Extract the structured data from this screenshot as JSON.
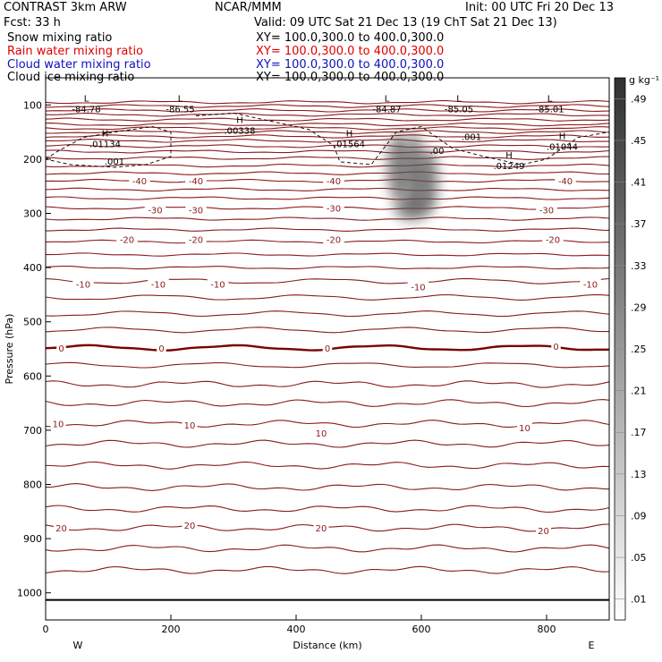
{
  "header": {
    "title": "CONTRAST  3km ARW",
    "center": "NCAR/MMM",
    "init": "Init: 00 UTC Fri 20 Dec 13",
    "fcst": "Fcst:   33 h",
    "valid": "Valid: 09 UTC Sat 21 Dec 13 (19 ChT Sat 21 Dec 13)",
    "fields": [
      {
        "label": "Snow mixing ratio",
        "xy": "XY= 100.0,300.0 to 400.0,300.0",
        "color": "#000000"
      },
      {
        "label": "Rain water mixing ratio",
        "xy": "XY= 100.0,300.0 to 400.0,300.0",
        "color": "#e00000"
      },
      {
        "label": "Cloud water mixing ratio",
        "xy": "XY= 100.0,300.0 to 400.0,300.0",
        "color": "#1010c0"
      },
      {
        "label": "Cloud ice mixing ratio",
        "xy": "XY= 100.0,300.0 to 400.0,300.0",
        "color": "#000000"
      }
    ]
  },
  "colors": {
    "contour": "#8b1a1a",
    "zero_contour": "#7a0000",
    "axes": "#000000"
  },
  "chart_data": {
    "type": "cross-section",
    "xlabel": "Distance (km)",
    "ylabel": "Pressure (hPa)",
    "xlim": [
      0,
      900
    ],
    "ylim": [
      1050,
      50
    ],
    "x_ticks": [
      0,
      200,
      400,
      600,
      800
    ],
    "y_ticks": [
      100,
      200,
      300,
      400,
      500,
      600,
      700,
      800,
      900,
      1000
    ],
    "direction_labels": {
      "left": "W",
      "right": "E"
    },
    "temperature_labels": [
      {
        "text": "-40",
        "x": 150,
        "p": 240
      },
      {
        "text": "-40",
        "x": 240,
        "p": 240
      },
      {
        "text": "-40",
        "x": 460,
        "p": 240
      },
      {
        "text": "-40",
        "x": 830,
        "p": 240
      },
      {
        "text": "-30",
        "x": 175,
        "p": 293
      },
      {
        "text": "-30",
        "x": 240,
        "p": 293
      },
      {
        "text": "-30",
        "x": 460,
        "p": 290
      },
      {
        "text": "-30",
        "x": 800,
        "p": 293
      },
      {
        "text": "-20",
        "x": 130,
        "p": 348
      },
      {
        "text": "-20",
        "x": 240,
        "p": 348
      },
      {
        "text": "-20",
        "x": 460,
        "p": 348
      },
      {
        "text": "-20",
        "x": 810,
        "p": 348
      },
      {
        "text": "-10",
        "x": 60,
        "p": 430
      },
      {
        "text": "-10",
        "x": 180,
        "p": 430
      },
      {
        "text": "-10",
        "x": 275,
        "p": 430
      },
      {
        "text": "-10",
        "x": 595,
        "p": 435
      },
      {
        "text": "-10",
        "x": 870,
        "p": 430
      },
      {
        "text": "0",
        "x": 25,
        "p": 548
      },
      {
        "text": "0",
        "x": 185,
        "p": 548
      },
      {
        "text": "0",
        "x": 450,
        "p": 548
      },
      {
        "text": "0",
        "x": 815,
        "p": 545
      },
      {
        "text": "10",
        "x": 20,
        "p": 688
      },
      {
        "text": "10",
        "x": 230,
        "p": 690
      },
      {
        "text": "10",
        "x": 440,
        "p": 705
      },
      {
        "text": "10",
        "x": 765,
        "p": 695
      },
      {
        "text": "20",
        "x": 25,
        "p": 880
      },
      {
        "text": "20",
        "x": 230,
        "p": 875
      },
      {
        "text": "20",
        "x": 440,
        "p": 880
      },
      {
        "text": "20",
        "x": 795,
        "p": 885
      }
    ],
    "extrema": [
      {
        "kind": "L",
        "value": "-84.78",
        "x": 65,
        "p": 100
      },
      {
        "kind": "L",
        "value": "-86.55",
        "x": 215,
        "p": 100
      },
      {
        "kind": "L",
        "value": "-84.87",
        "x": 545,
        "p": 100
      },
      {
        "kind": "L",
        "value": "-85.05",
        "x": 660,
        "p": 100
      },
      {
        "kind": "L",
        "value": "-85.01",
        "x": 805,
        "p": 100
      },
      {
        "kind": "H",
        "value": ".01134",
        "x": 95,
        "p": 165
      },
      {
        "kind": "H",
        "value": ".00338",
        "x": 310,
        "p": 140
      },
      {
        "kind": "H",
        "value": ".01564",
        "x": 485,
        "p": 165
      },
      {
        "kind": "H",
        "value": ".01249",
        "x": 740,
        "p": 205
      },
      {
        "kind": "H",
        "value": ".01044",
        "x": 825,
        "p": 170
      }
    ],
    "small_labels": [
      {
        "text": ".001",
        "x": 110,
        "p": 210
      },
      {
        "text": ".00",
        "x": 625,
        "p": 190
      },
      {
        "text": ".001",
        "x": 680,
        "p": 165
      }
    ],
    "colorbar": {
      "unit": "g kg⁻¹",
      "levels": [
        ".01",
        ".05",
        ".09",
        ".13",
        ".17",
        ".21",
        ".25",
        ".29",
        ".33",
        ".37",
        ".41",
        ".45",
        ".49"
      ]
    }
  }
}
